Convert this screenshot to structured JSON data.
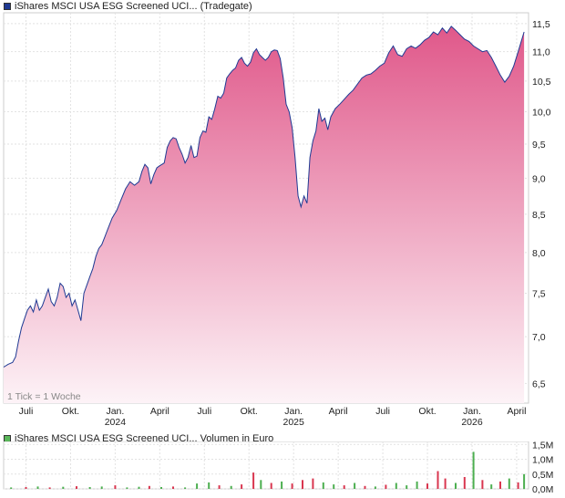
{
  "legend_price": {
    "label": "iShares MSCI USA ESG Screened UCI... (Tradegate)",
    "color": "#1f3a93"
  },
  "legend_volume": {
    "label": "iShares MSCI USA ESG Screened UCI... Volumen in Euro",
    "color": "#5ab75a"
  },
  "tick_note": "1 Tick = 1 Woche",
  "watermark": "A",
  "chart_data": [
    {
      "type": "area",
      "title": "iShares MSCI USA ESG Screened UCI... (Tradegate)",
      "colors": {
        "line": "#1f3a93",
        "fill_top": "#e0588a",
        "fill_bottom": "#fdf3f7"
      },
      "x_tick_labels": [
        {
          "label": "Juli",
          "t": 1.5
        },
        {
          "label": "Okt.",
          "t": 4.5
        },
        {
          "label": "Jan.",
          "t": 7.5,
          "year": "2024"
        },
        {
          "label": "April",
          "t": 10.5
        },
        {
          "label": "Juli",
          "t": 13.5
        },
        {
          "label": "Okt.",
          "t": 16.5
        },
        {
          "label": "Jan.",
          "t": 19.5,
          "year": "2025"
        },
        {
          "label": "April",
          "t": 22.5
        },
        {
          "label": "Juli",
          "t": 25.5
        },
        {
          "label": "Okt.",
          "t": 28.5
        },
        {
          "label": "Jan.",
          "t": 31.5,
          "year": "2026"
        },
        {
          "label": "April",
          "t": 34.5
        }
      ],
      "y_ticks": [
        6.5,
        7.0,
        7.5,
        8.0,
        8.5,
        9.0,
        9.5,
        10.0,
        10.5,
        11.0,
        11.5
      ],
      "y_tick_labels": [
        "6,5",
        "7,0",
        "7,5",
        "8,0",
        "8,5",
        "9,0",
        "9,5",
        "10,0",
        "10,5",
        "11,0",
        "11,5"
      ],
      "y_scale": "log",
      "ylim": [
        6.3,
        11.7
      ],
      "x_range_months": [
        0,
        35.3
      ],
      "grid": true,
      "points": [
        [
          0,
          6.67
        ],
        [
          0.3,
          6.7
        ],
        [
          0.6,
          6.72
        ],
        [
          0.8,
          6.78
        ],
        [
          1.0,
          6.95
        ],
        [
          1.2,
          7.1
        ],
        [
          1.4,
          7.2
        ],
        [
          1.6,
          7.3
        ],
        [
          1.8,
          7.35
        ],
        [
          2.0,
          7.28
        ],
        [
          2.2,
          7.42
        ],
        [
          2.4,
          7.3
        ],
        [
          2.6,
          7.35
        ],
        [
          2.8,
          7.45
        ],
        [
          3.0,
          7.55
        ],
        [
          3.2,
          7.4
        ],
        [
          3.4,
          7.35
        ],
        [
          3.6,
          7.45
        ],
        [
          3.8,
          7.62
        ],
        [
          4.0,
          7.58
        ],
        [
          4.2,
          7.45
        ],
        [
          4.4,
          7.5
        ],
        [
          4.6,
          7.35
        ],
        [
          4.8,
          7.42
        ],
        [
          5.0,
          7.3
        ],
        [
          5.2,
          7.18
        ],
        [
          5.4,
          7.5
        ],
        [
          5.6,
          7.6
        ],
        [
          5.8,
          7.7
        ],
        [
          6.0,
          7.8
        ],
        [
          6.2,
          7.95
        ],
        [
          6.4,
          8.05
        ],
        [
          6.6,
          8.1
        ],
        [
          6.8,
          8.2
        ],
        [
          7.0,
          8.3
        ],
        [
          7.3,
          8.45
        ],
        [
          7.6,
          8.55
        ],
        [
          7.9,
          8.7
        ],
        [
          8.2,
          8.85
        ],
        [
          8.5,
          8.95
        ],
        [
          8.8,
          8.9
        ],
        [
          9.1,
          8.95
        ],
        [
          9.3,
          9.1
        ],
        [
          9.5,
          9.2
        ],
        [
          9.7,
          9.15
        ],
        [
          9.9,
          8.92
        ],
        [
          10.1,
          9.05
        ],
        [
          10.3,
          9.15
        ],
        [
          10.5,
          9.18
        ],
        [
          10.8,
          9.22
        ],
        [
          11.0,
          9.45
        ],
        [
          11.2,
          9.55
        ],
        [
          11.4,
          9.6
        ],
        [
          11.6,
          9.58
        ],
        [
          11.8,
          9.45
        ],
        [
          12.0,
          9.35
        ],
        [
          12.2,
          9.22
        ],
        [
          12.4,
          9.3
        ],
        [
          12.6,
          9.48
        ],
        [
          12.8,
          9.3
        ],
        [
          13.0,
          9.32
        ],
        [
          13.2,
          9.6
        ],
        [
          13.4,
          9.7
        ],
        [
          13.6,
          9.68
        ],
        [
          13.8,
          9.92
        ],
        [
          14.0,
          9.88
        ],
        [
          14.2,
          10.05
        ],
        [
          14.4,
          10.25
        ],
        [
          14.6,
          10.22
        ],
        [
          14.8,
          10.3
        ],
        [
          15.0,
          10.55
        ],
        [
          15.2,
          10.62
        ],
        [
          15.4,
          10.68
        ],
        [
          15.6,
          10.72
        ],
        [
          15.8,
          10.85
        ],
        [
          16.0,
          10.9
        ],
        [
          16.2,
          10.8
        ],
        [
          16.4,
          10.75
        ],
        [
          16.6,
          10.82
        ],
        [
          16.8,
          10.98
        ],
        [
          17.0,
          11.05
        ],
        [
          17.2,
          10.95
        ],
        [
          17.4,
          10.9
        ],
        [
          17.6,
          10.85
        ],
        [
          17.8,
          10.9
        ],
        [
          18.0,
          11.0
        ],
        [
          18.2,
          11.03
        ],
        [
          18.4,
          11.02
        ],
        [
          18.6,
          10.88
        ],
        [
          18.8,
          10.55
        ],
        [
          19.0,
          10.12
        ],
        [
          19.2,
          10.0
        ],
        [
          19.4,
          9.75
        ],
        [
          19.6,
          9.3
        ],
        [
          19.8,
          8.75
        ],
        [
          20.0,
          8.6
        ],
        [
          20.2,
          8.75
        ],
        [
          20.4,
          8.65
        ],
        [
          20.6,
          9.3
        ],
        [
          20.8,
          9.55
        ],
        [
          21.0,
          9.7
        ],
        [
          21.2,
          10.05
        ],
        [
          21.4,
          9.85
        ],
        [
          21.6,
          9.9
        ],
        [
          21.8,
          9.72
        ],
        [
          22.0,
          9.92
        ],
        [
          22.3,
          10.05
        ],
        [
          22.6,
          10.12
        ],
        [
          22.9,
          10.2
        ],
        [
          23.2,
          10.28
        ],
        [
          23.5,
          10.35
        ],
        [
          23.8,
          10.45
        ],
        [
          24.1,
          10.55
        ],
        [
          24.4,
          10.6
        ],
        [
          24.7,
          10.62
        ],
        [
          25.0,
          10.68
        ],
        [
          25.3,
          10.75
        ],
        [
          25.6,
          10.8
        ],
        [
          25.9,
          10.98
        ],
        [
          26.2,
          11.1
        ],
        [
          26.5,
          10.95
        ],
        [
          26.8,
          10.92
        ],
        [
          27.1,
          11.05
        ],
        [
          27.4,
          11.1
        ],
        [
          27.7,
          11.06
        ],
        [
          28.0,
          11.12
        ],
        [
          28.3,
          11.2
        ],
        [
          28.6,
          11.25
        ],
        [
          28.9,
          11.35
        ],
        [
          29.2,
          11.3
        ],
        [
          29.5,
          11.42
        ],
        [
          29.8,
          11.33
        ],
        [
          30.1,
          11.45
        ],
        [
          30.4,
          11.38
        ],
        [
          30.7,
          11.3
        ],
        [
          31.0,
          11.22
        ],
        [
          31.3,
          11.18
        ],
        [
          31.6,
          11.1
        ],
        [
          31.9,
          11.05
        ],
        [
          32.2,
          11.0
        ],
        [
          32.5,
          11.02
        ],
        [
          32.8,
          10.9
        ],
        [
          33.1,
          10.75
        ],
        [
          33.4,
          10.6
        ],
        [
          33.7,
          10.48
        ],
        [
          34.0,
          10.58
        ],
        [
          34.3,
          10.75
        ],
        [
          34.6,
          11.0
        ],
        [
          35.0,
          11.35
        ]
      ]
    },
    {
      "type": "bar",
      "title": "iShares MSCI USA ESG Screened UCI... Volumen in Euro",
      "y_ticks": [
        0,
        0.5,
        1.0,
        1.5
      ],
      "y_tick_labels": [
        "0,0M",
        "0,5M",
        "1,0M",
        "1,5M"
      ],
      "ylim": [
        0,
        1.6
      ],
      "unit": "Mio. Euro",
      "bars": [
        {
          "t": 0.5,
          "v": 0.05,
          "up": true
        },
        {
          "t": 1.5,
          "v": 0.06,
          "up": false
        },
        {
          "t": 2.3,
          "v": 0.08,
          "up": true
        },
        {
          "t": 3.1,
          "v": 0.05,
          "up": false
        },
        {
          "t": 4.0,
          "v": 0.07,
          "up": true
        },
        {
          "t": 4.9,
          "v": 0.09,
          "up": false
        },
        {
          "t": 5.8,
          "v": 0.06,
          "up": true
        },
        {
          "t": 6.6,
          "v": 0.08,
          "up": true
        },
        {
          "t": 7.5,
          "v": 0.12,
          "up": false
        },
        {
          "t": 8.3,
          "v": 0.05,
          "up": true
        },
        {
          "t": 9.1,
          "v": 0.07,
          "up": true
        },
        {
          "t": 9.8,
          "v": 0.1,
          "up": false
        },
        {
          "t": 10.6,
          "v": 0.06,
          "up": true
        },
        {
          "t": 11.4,
          "v": 0.08,
          "up": false
        },
        {
          "t": 12.2,
          "v": 0.05,
          "up": true
        },
        {
          "t": 13.0,
          "v": 0.18,
          "up": true
        },
        {
          "t": 13.8,
          "v": 0.22,
          "up": true
        },
        {
          "t": 14.5,
          "v": 0.12,
          "up": false
        },
        {
          "t": 15.3,
          "v": 0.1,
          "up": true
        },
        {
          "t": 16.0,
          "v": 0.15,
          "up": false
        },
        {
          "t": 16.8,
          "v": 0.55,
          "up": false
        },
        {
          "t": 17.3,
          "v": 0.3,
          "up": true
        },
        {
          "t": 18.0,
          "v": 0.2,
          "up": false
        },
        {
          "t": 18.7,
          "v": 0.25,
          "up": true
        },
        {
          "t": 19.4,
          "v": 0.18,
          "up": false
        },
        {
          "t": 20.1,
          "v": 0.3,
          "up": false
        },
        {
          "t": 20.8,
          "v": 0.35,
          "up": false
        },
        {
          "t": 21.5,
          "v": 0.22,
          "up": true
        },
        {
          "t": 22.2,
          "v": 0.15,
          "up": true
        },
        {
          "t": 22.9,
          "v": 0.12,
          "up": false
        },
        {
          "t": 23.6,
          "v": 0.2,
          "up": true
        },
        {
          "t": 24.3,
          "v": 0.1,
          "up": false
        },
        {
          "t": 25.0,
          "v": 0.08,
          "up": true
        },
        {
          "t": 25.7,
          "v": 0.14,
          "up": false
        },
        {
          "t": 26.4,
          "v": 0.2,
          "up": true
        },
        {
          "t": 27.1,
          "v": 0.12,
          "up": true
        },
        {
          "t": 27.8,
          "v": 0.25,
          "up": true
        },
        {
          "t": 28.5,
          "v": 0.18,
          "up": false
        },
        {
          "t": 29.2,
          "v": 0.6,
          "up": false
        },
        {
          "t": 29.7,
          "v": 0.35,
          "up": false
        },
        {
          "t": 30.4,
          "v": 0.2,
          "up": true
        },
        {
          "t": 31.0,
          "v": 0.4,
          "up": false
        },
        {
          "t": 31.6,
          "v": 1.25,
          "up": true
        },
        {
          "t": 32.2,
          "v": 0.3,
          "up": false
        },
        {
          "t": 32.8,
          "v": 0.15,
          "up": true
        },
        {
          "t": 33.4,
          "v": 0.25,
          "up": false
        },
        {
          "t": 34.0,
          "v": 0.35,
          "up": true
        },
        {
          "t": 34.6,
          "v": 0.22,
          "up": false
        },
        {
          "t": 35.0,
          "v": 0.5,
          "up": true
        }
      ],
      "colors": {
        "up": "#4caf50",
        "down": "#d9364f"
      }
    }
  ]
}
